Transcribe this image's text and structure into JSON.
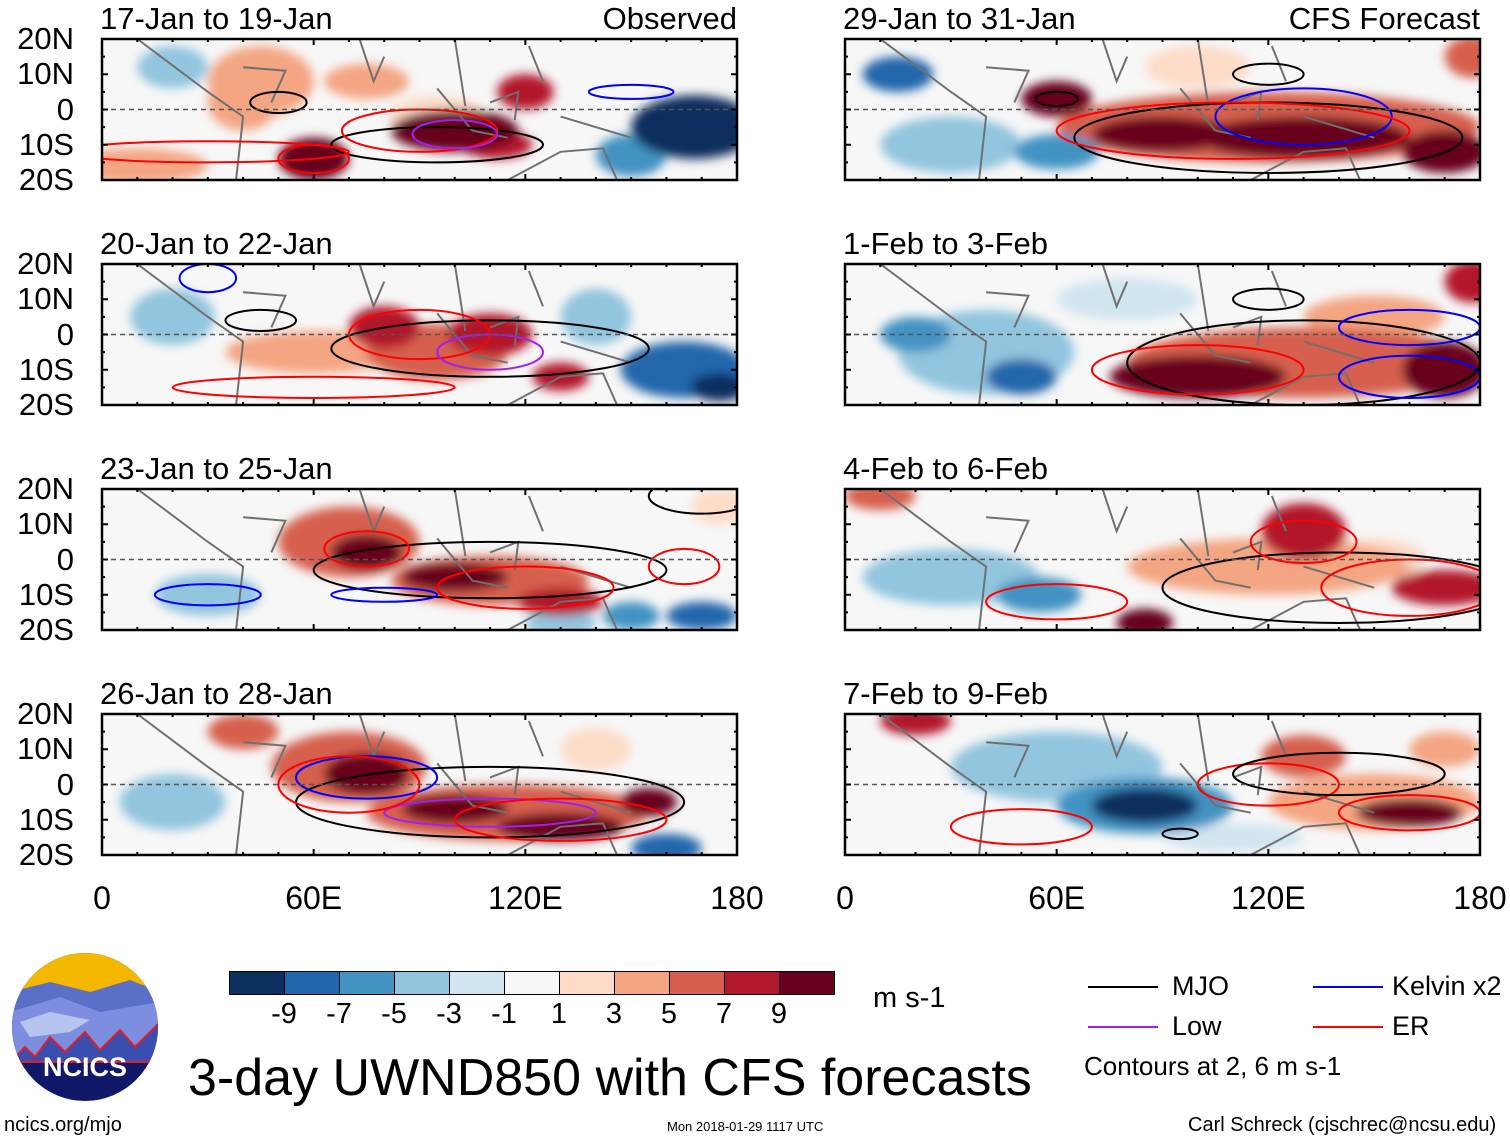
{
  "title": "3-day UWND850 with CFS forecasts",
  "left_column_label": "Observed",
  "right_column_label": "CFS Forecast",
  "panels_left": [
    {
      "title": "17-Jan to 19-Jan"
    },
    {
      "title": "20-Jan to 22-Jan"
    },
    {
      "title": "23-Jan to 25-Jan"
    },
    {
      "title": "26-Jan to 28-Jan"
    }
  ],
  "panels_right": [
    {
      "title": "29-Jan to 31-Jan"
    },
    {
      "title": "1-Feb to 3-Feb"
    },
    {
      "title": "4-Feb to 6-Feb"
    },
    {
      "title": "7-Feb to 9-Feb"
    }
  ],
  "lat_labels": [
    "20N",
    "10N",
    "0",
    "10S",
    "20S"
  ],
  "lon_labels": [
    "0",
    "60E",
    "120E",
    "180"
  ],
  "colorbar": {
    "colors": [
      "#0b2f5e",
      "#2166ac",
      "#4393c3",
      "#92c5de",
      "#d1e5f0",
      "#f7f7f7",
      "#fddbc7",
      "#f4a582",
      "#d6604d",
      "#b2182b",
      "#67001f"
    ],
    "labels": [
      "-9",
      "-7",
      "-5",
      "-3",
      "-1",
      "1",
      "3",
      "5",
      "7",
      "9"
    ],
    "units": "m s-1"
  },
  "legend": {
    "items": [
      {
        "label": "MJO",
        "color": "#000000"
      },
      {
        "label": "Kelvin x2",
        "color": "#0000ff"
      },
      {
        "label": "Low",
        "color": "#a020f0"
      },
      {
        "label": "ER",
        "color": "#ff0000"
      }
    ],
    "contours_note": "Contours at 2, 6 m s-1"
  },
  "logo_text": "NCICS",
  "footer": {
    "url": "ncics.org/mjo",
    "timestamp": "Mon 2018-01-29 1117 UTC",
    "author": "Carl Schreck (cjschrec@ncsu.edu)"
  }
}
